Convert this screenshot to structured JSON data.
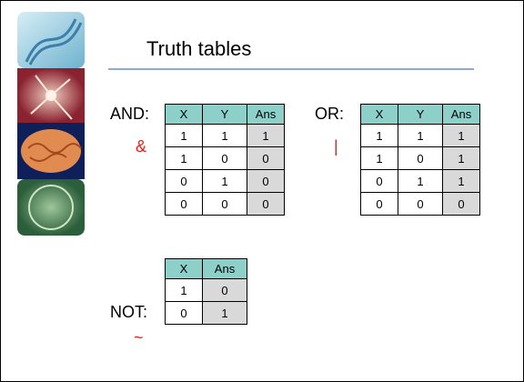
{
  "title": "Truth tables",
  "tables": [
    {
      "label": "AND:",
      "operator": "&",
      "header": [
        "X",
        "Y",
        "Ans"
      ],
      "rows": [
        [
          1,
          1,
          1
        ],
        [
          1,
          0,
          0
        ],
        [
          0,
          1,
          0
        ],
        [
          0,
          0,
          0
        ]
      ]
    },
    {
      "label": "OR:",
      "operator": "|",
      "header": [
        "X",
        "Y",
        "Ans"
      ],
      "rows": [
        [
          1,
          1,
          1
        ],
        [
          1,
          0,
          1
        ],
        [
          0,
          1,
          1
        ],
        [
          0,
          0,
          0
        ]
      ]
    },
    {
      "label": "NOT:",
      "operator": "~",
      "header": [
        "X",
        "Ans"
      ],
      "rows": [
        [
          1,
          0
        ],
        [
          0,
          1
        ]
      ]
    }
  ]
}
